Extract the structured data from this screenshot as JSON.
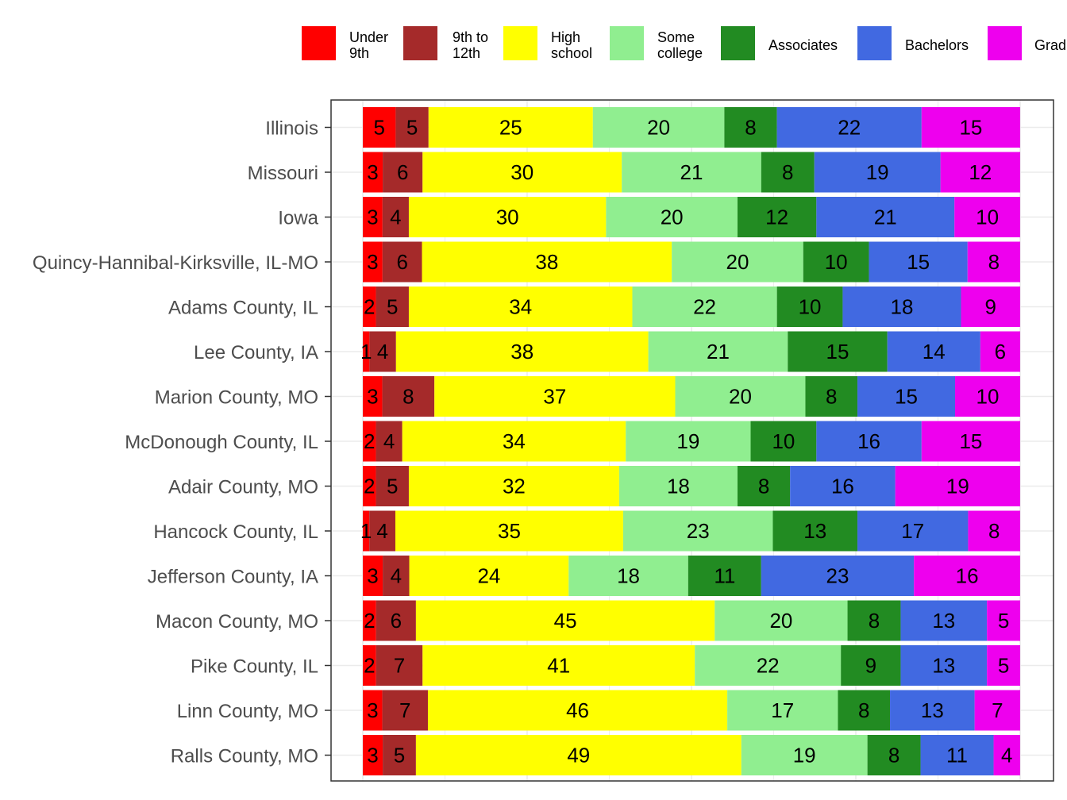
{
  "chart_data": {
    "type": "bar",
    "orientation": "horizontal",
    "stacked": true,
    "normalized_to_100": true,
    "legend_position": "top",
    "grid": true,
    "xlim": [
      0,
      100
    ],
    "categories": [
      "Illinois",
      "Missouri",
      "Iowa",
      "Quincy-Hannibal-Kirksville, IL-MO",
      "Adams County, IL",
      "Lee County, IA",
      "Marion County, MO",
      "McDonough County, IL",
      "Adair County, MO",
      "Hancock County, IL",
      "Jefferson County, IA",
      "Macon County, MO",
      "Pike County, IL",
      "Linn County, MO",
      "Ralls County, MO"
    ],
    "series": [
      {
        "name": "Under 9th",
        "legend_lines": [
          "Under",
          "9th"
        ],
        "color": "#ff0000",
        "values": [
          5,
          3,
          3,
          3,
          2,
          1,
          3,
          2,
          2,
          1,
          3,
          2,
          2,
          3,
          3
        ]
      },
      {
        "name": "9th to 12th",
        "legend_lines": [
          "9th to",
          "12th"
        ],
        "color": "#a52a2a",
        "values": [
          5,
          6,
          4,
          6,
          5,
          4,
          8,
          4,
          5,
          4,
          4,
          6,
          7,
          7,
          5
        ]
      },
      {
        "name": "High school",
        "legend_lines": [
          "High",
          "school"
        ],
        "color": "#ffff00",
        "values": [
          25,
          30,
          30,
          38,
          34,
          38,
          37,
          34,
          32,
          35,
          24,
          45,
          41,
          46,
          49
        ]
      },
      {
        "name": "Some college",
        "legend_lines": [
          "Some",
          "college"
        ],
        "color": "#90ee90",
        "values": [
          20,
          21,
          20,
          20,
          22,
          21,
          20,
          19,
          18,
          23,
          18,
          20,
          22,
          17,
          19
        ]
      },
      {
        "name": "Associates",
        "legend_lines": [
          "Associates"
        ],
        "color": "#228b22",
        "values": [
          8,
          8,
          12,
          10,
          10,
          15,
          8,
          10,
          8,
          13,
          11,
          8,
          9,
          8,
          8
        ]
      },
      {
        "name": "Bachelors",
        "legend_lines": [
          "Bachelors"
        ],
        "color": "#4169e1",
        "values": [
          22,
          19,
          21,
          15,
          18,
          14,
          15,
          16,
          16,
          17,
          23,
          13,
          13,
          13,
          11
        ]
      },
      {
        "name": "Grad",
        "legend_lines": [
          "Grad"
        ],
        "color": "#ee00ee",
        "values": [
          15,
          12,
          10,
          8,
          9,
          6,
          10,
          15,
          19,
          8,
          16,
          5,
          5,
          7,
          4
        ]
      }
    ]
  }
}
